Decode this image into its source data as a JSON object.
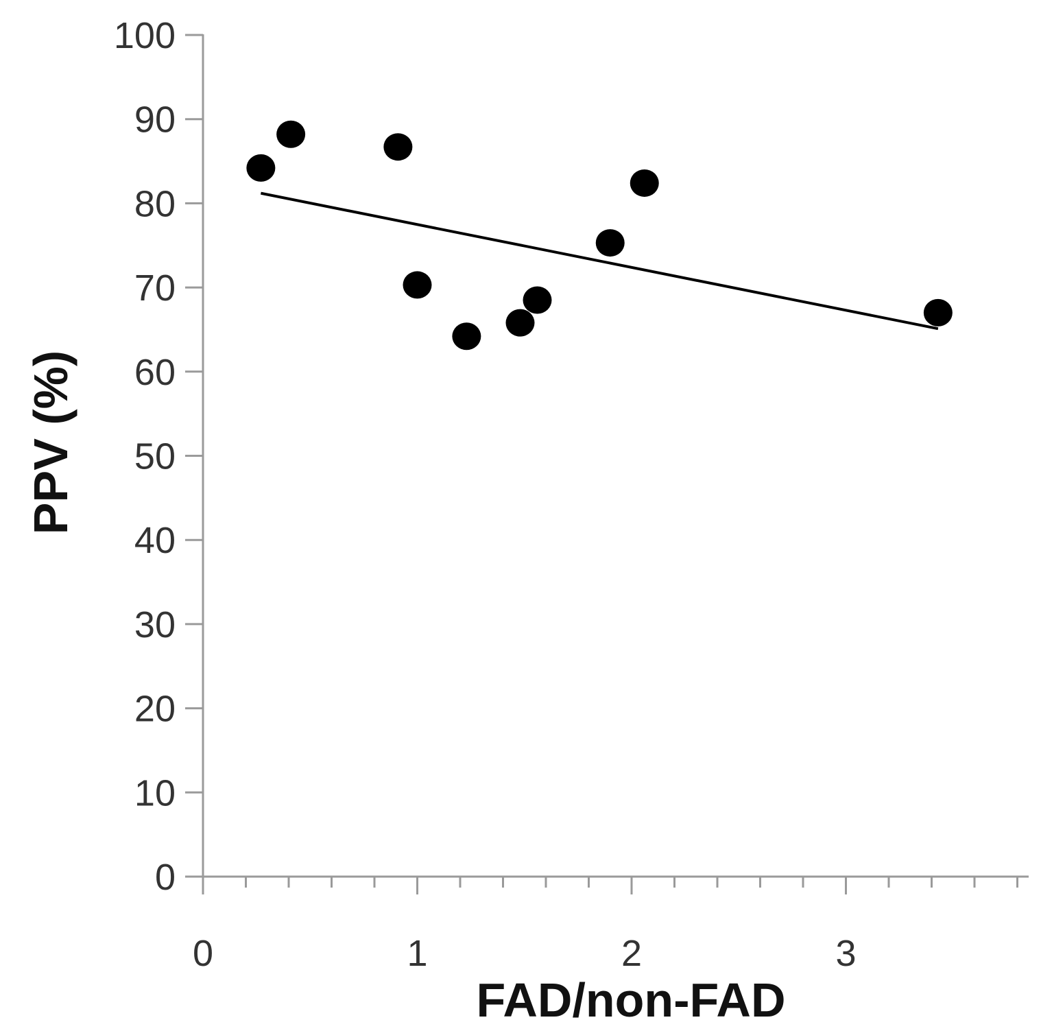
{
  "chart_data": {
    "type": "scatter",
    "title": "",
    "xlabel": "FAD/non-FAD",
    "ylabel": "PPV (%)",
    "xlim": [
      0,
      3.85
    ],
    "ylim": [
      0,
      100
    ],
    "x_ticks": [
      0,
      1,
      2,
      3
    ],
    "x_tick_labels": [
      "0",
      "1",
      "2",
      "3"
    ],
    "x_minor_tick_step": 0.2,
    "y_ticks": [
      0,
      10,
      20,
      30,
      40,
      50,
      60,
      70,
      80,
      90,
      100
    ],
    "y_tick_labels": [
      "0",
      "10",
      "20",
      "30",
      "40",
      "50",
      "60",
      "70",
      "80",
      "90",
      "100"
    ],
    "grid": false,
    "legend": "none",
    "series": [
      {
        "points": [
          {
            "x": 0.27,
            "y": 84.2
          },
          {
            "x": 0.41,
            "y": 88.2
          },
          {
            "x": 0.91,
            "y": 86.7
          },
          {
            "x": 1.0,
            "y": 70.3
          },
          {
            "x": 1.23,
            "y": 64.2
          },
          {
            "x": 1.48,
            "y": 65.8
          },
          {
            "x": 1.56,
            "y": 68.5
          },
          {
            "x": 1.9,
            "y": 75.3
          },
          {
            "x": 2.06,
            "y": 82.4
          },
          {
            "x": 3.43,
            "y": 67.0
          }
        ],
        "color": "#000000"
      }
    ],
    "trendline": {
      "type": "linear",
      "from": {
        "x": 0.27,
        "y": 81.2
      },
      "to": {
        "x": 3.43,
        "y": 65.1
      },
      "color": "#000000"
    }
  }
}
